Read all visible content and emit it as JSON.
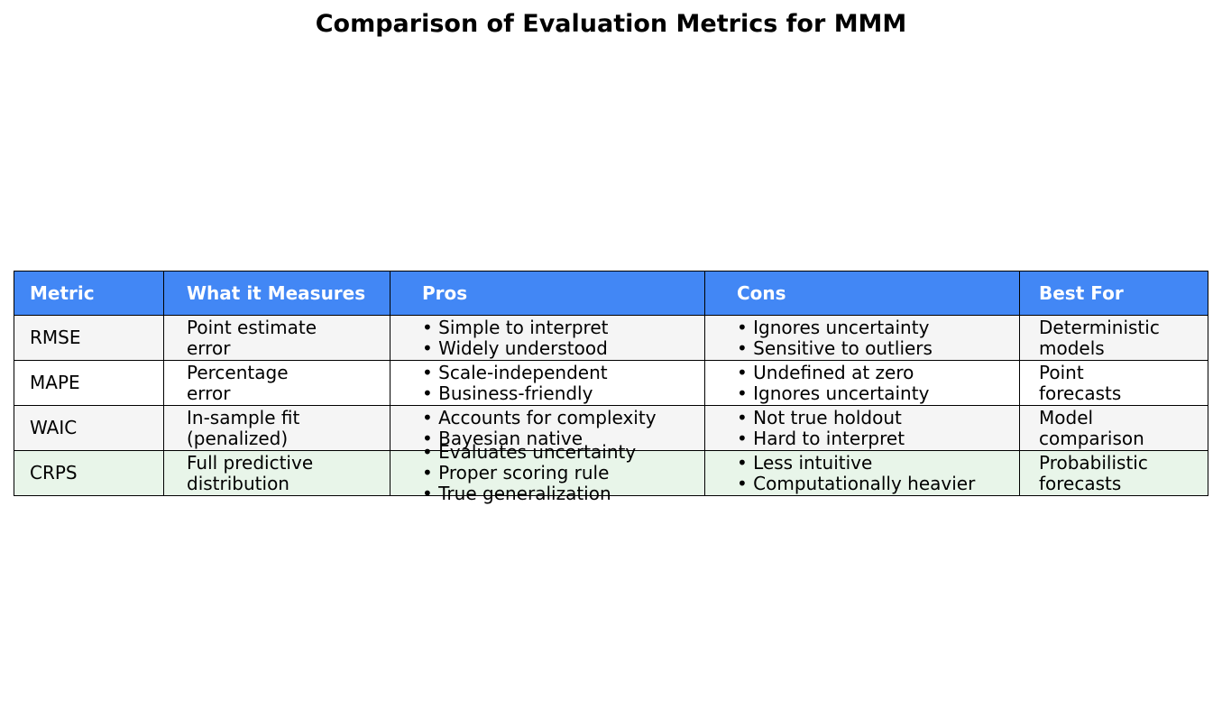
{
  "chart_data": {
    "type": "table",
    "title": "Comparison of Evaluation Metrics for MMM",
    "columns": [
      "Metric",
      "What it Measures",
      "Pros",
      "Cons",
      "Best For"
    ],
    "rows": [
      [
        "RMSE",
        "Point estimate\nerror",
        "• Simple to interpret\n• Widely understood",
        "• Ignores uncertainty\n• Sensitive to outliers",
        "Deterministic\nmodels"
      ],
      [
        "MAPE",
        "Percentage\nerror",
        "• Scale-independent\n• Business-friendly",
        "• Undefined at zero\n• Ignores uncertainty",
        "Point\nforecasts"
      ],
      [
        "WAIC",
        "In-sample fit\n(penalized)",
        "• Accounts for complexity\n• Bayesian native",
        "• Not true holdout\n• Hard to interpret",
        "Model\ncomparison"
      ],
      [
        "CRPS",
        "Full predictive\ndistribution",
        "• Evaluates uncertainty\n• Proper scoring rule\n• True generalization",
        "• Less intuitive\n• Computationally heavier",
        "Probabilistic\nforecasts"
      ]
    ]
  },
  "colors": {
    "header_bg": "#4287f5",
    "header_text": "#ffffff",
    "row_alt_bg": "#f5f5f5",
    "row_bg": "#ffffff",
    "highlight_row_bg": "#e8f5e9",
    "border": "#000000"
  }
}
